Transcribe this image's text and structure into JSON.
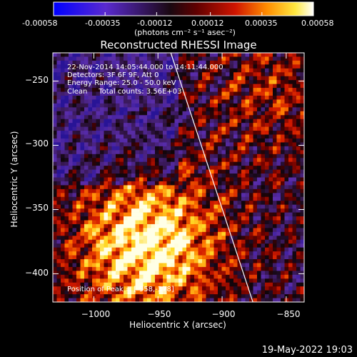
{
  "colorbar": {
    "ticks": [
      "-0.00058",
      "-0.00035",
      "-0.00012",
      "0.00012",
      "0.00035",
      "0.00058"
    ],
    "tick_values": [
      -0.00058,
      -0.00035,
      -0.00012,
      0.00012,
      0.00035,
      0.00058
    ],
    "range": [
      -0.00058,
      0.00058
    ],
    "units_label": "(photons cm⁻² s⁻¹ asec⁻²)",
    "colormap": "blue-purple-black-red-orange-yellow-white"
  },
  "chart_data": {
    "type": "heatmap",
    "title": "Reconstructed RHESSI Image",
    "xlabel": "Heliocentric X (arcsec)",
    "ylabel": "Heliocentric Y (arcsec)",
    "xlim": [
      -1032,
      -836
    ],
    "ylim": [
      -422,
      -228
    ],
    "xticks": [
      -1000,
      -950,
      -900,
      -850
    ],
    "yticks": [
      -250,
      -300,
      -350,
      -400
    ],
    "xtick_labels": [
      "−1000",
      "−950",
      "−900",
      "−850"
    ],
    "ytick_labels": [
      "−250",
      "−300",
      "−350",
      "−400"
    ],
    "limb_line": {
      "x_top": -940,
      "x_bottom": -876
    },
    "annotations": [
      "22-Nov-2014 14:05:44.000 to 14:11:44.000",
      "Detectors: 3F 6F 9F, Att 0",
      "Energy Range: 25.0 - 50.0 keV",
      "Clean     Total counts: 3.56E+03"
    ],
    "peak_label": "Position of Peak = [-958,-378]",
    "peak": [
      -958,
      -378
    ]
  },
  "footer": {
    "timestamp": "19-May-2022 19:03"
  }
}
